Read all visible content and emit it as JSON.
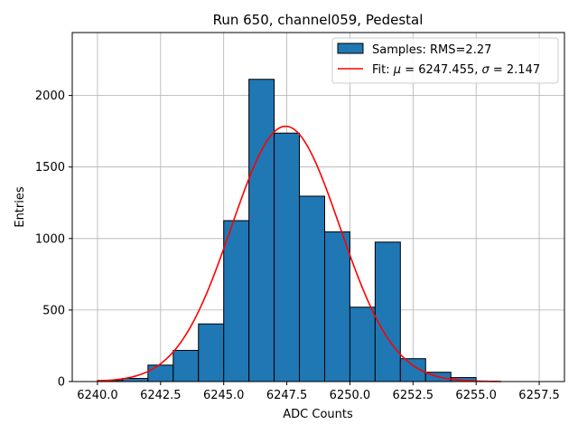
{
  "chart_data": {
    "type": "bar",
    "title": "Run 650, channel059, Pedestal",
    "xlabel": "ADC Counts",
    "ylabel": "Entries",
    "xlim": [
      6239.0,
      6258.5
    ],
    "ylim": [
      0,
      2440
    ],
    "grid": true,
    "legend_placement": "top-right",
    "bin_edges": [
      6240,
      6241,
      6242,
      6243,
      6244,
      6245,
      6246,
      6247,
      6248,
      6249,
      6250,
      6251,
      6252,
      6253,
      6254,
      6255,
      6256,
      6257
    ],
    "values": [
      8,
      22,
      115,
      218,
      403,
      1125,
      2113,
      1737,
      1296,
      1047,
      520,
      975,
      160,
      65,
      28,
      0,
      0
    ],
    "x_ticks": [
      6240.0,
      6242.5,
      6245.0,
      6247.5,
      6250.0,
      6252.5,
      6255.0,
      6257.5
    ],
    "x_tick_labels": [
      "6240.0",
      "6242.5",
      "6245.0",
      "6247.5",
      "6250.0",
      "6252.5",
      "6255.0",
      "6257.5"
    ],
    "y_ticks": [
      0,
      500,
      1000,
      1500,
      2000
    ],
    "y_tick_labels": [
      "0",
      "500",
      "1000",
      "1500",
      "2000"
    ],
    "fit": {
      "mu": 6247.455,
      "sigma": 2.147,
      "amplitude": 1785,
      "x_range": [
        6240,
        6256
      ]
    },
    "series": [
      {
        "name": "Samples: RMS=2.27",
        "kind": "histogram",
        "color": "#1f77b4",
        "edgecolor": "#000000"
      },
      {
        "name_prefix": "Fit: ",
        "mu_symbol": "μ",
        "mu_value": " = 6247.455, ",
        "sigma_symbol": "σ",
        "sigma_value": " = 2.147",
        "kind": "line",
        "color": "#ff0000"
      }
    ]
  }
}
